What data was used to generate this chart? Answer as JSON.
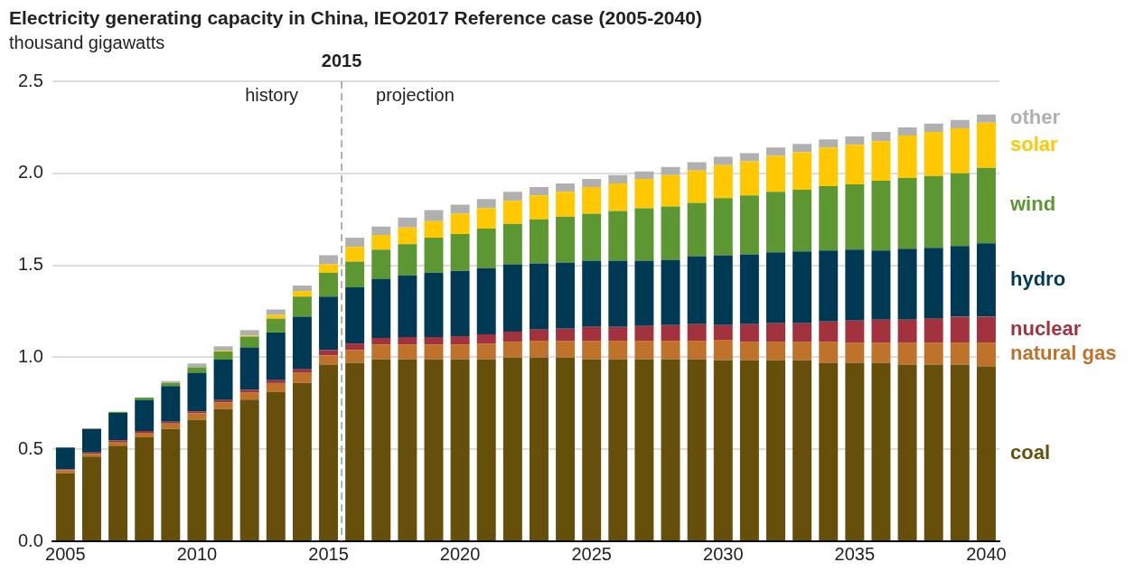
{
  "chart_data": {
    "type": "bar",
    "stacked": true,
    "title": "Electricity generating capacity in China, IEO2017 Reference case (2005-2040)",
    "ylabel": "thousand gigawatts",
    "x": [
      2005,
      2006,
      2007,
      2008,
      2009,
      2010,
      2011,
      2012,
      2013,
      2014,
      2015,
      2016,
      2017,
      2018,
      2019,
      2020,
      2021,
      2022,
      2023,
      2024,
      2025,
      2026,
      2027,
      2028,
      2029,
      2030,
      2031,
      2032,
      2033,
      2034,
      2035,
      2036,
      2037,
      2038,
      2039,
      2040
    ],
    "xlim": [
      2004.5,
      2040.5
    ],
    "xticks": [
      2005,
      2010,
      2015,
      2020,
      2025,
      2030,
      2035,
      2040
    ],
    "ylim": [
      0,
      2.5
    ],
    "yticks": [
      {
        "value": 0,
        "label": "0.0"
      },
      0.5,
      {
        "value": 1,
        "label": "1.0"
      },
      1.5,
      {
        "value": 2,
        "label": "2.0"
      },
      2.5
    ],
    "grid": "y",
    "legend": false,
    "series": [
      {
        "name": "coal",
        "color": "#664f0a",
        "values": [
          0.37,
          0.46,
          0.52,
          0.565,
          0.61,
          0.66,
          0.72,
          0.77,
          0.81,
          0.86,
          0.96,
          0.97,
          0.99,
          0.99,
          0.99,
          0.99,
          0.99,
          1.0,
          1.0,
          1.0,
          0.99,
          0.99,
          0.99,
          0.99,
          0.99,
          0.985,
          0.985,
          0.985,
          0.985,
          0.97,
          0.97,
          0.97,
          0.96,
          0.96,
          0.96,
          0.95
        ]
      },
      {
        "name": "natural gas",
        "color": "#bf7229",
        "values": [
          0.015,
          0.015,
          0.02,
          0.025,
          0.03,
          0.035,
          0.035,
          0.04,
          0.05,
          0.055,
          0.05,
          0.07,
          0.08,
          0.08,
          0.08,
          0.08,
          0.085,
          0.085,
          0.09,
          0.09,
          0.1,
          0.1,
          0.1,
          0.1,
          0.1,
          0.11,
          0.1,
          0.1,
          0.1,
          0.115,
          0.11,
          0.11,
          0.12,
          0.12,
          0.12,
          0.13
        ]
      },
      {
        "name": "nuclear",
        "color": "#a3323f",
        "values": [
          0.007,
          0.007,
          0.009,
          0.009,
          0.009,
          0.011,
          0.012,
          0.013,
          0.015,
          0.02,
          0.03,
          0.035,
          0.035,
          0.04,
          0.04,
          0.045,
          0.05,
          0.055,
          0.06,
          0.065,
          0.075,
          0.075,
          0.08,
          0.085,
          0.09,
          0.08,
          0.095,
          0.1,
          0.1,
          0.11,
          0.12,
          0.125,
          0.125,
          0.13,
          0.14,
          0.14
        ]
      },
      {
        "name": "hydro",
        "color": "#003953",
        "values": [
          0.117,
          0.13,
          0.148,
          0.17,
          0.195,
          0.21,
          0.22,
          0.23,
          0.26,
          0.285,
          0.29,
          0.305,
          0.32,
          0.335,
          0.35,
          0.355,
          0.36,
          0.365,
          0.36,
          0.36,
          0.36,
          0.36,
          0.355,
          0.355,
          0.37,
          0.38,
          0.38,
          0.385,
          0.39,
          0.385,
          0.385,
          0.375,
          0.385,
          0.385,
          0.385,
          0.4
        ]
      },
      {
        "name": "wind",
        "color": "#5d9732",
        "values": [
          0,
          0,
          0.006,
          0.012,
          0.017,
          0.03,
          0.045,
          0.06,
          0.075,
          0.11,
          0.13,
          0.14,
          0.16,
          0.17,
          0.19,
          0.2,
          0.215,
          0.22,
          0.24,
          0.25,
          0.255,
          0.27,
          0.285,
          0.29,
          0.29,
          0.31,
          0.32,
          0.33,
          0.335,
          0.35,
          0.355,
          0.38,
          0.385,
          0.39,
          0.395,
          0.41
        ]
      },
      {
        "name": "solar",
        "color": "#ffc800",
        "values": [
          0,
          0,
          0,
          0,
          0,
          0,
          0.003,
          0.005,
          0.02,
          0.03,
          0.045,
          0.08,
          0.08,
          0.09,
          0.09,
          0.11,
          0.11,
          0.125,
          0.13,
          0.135,
          0.145,
          0.15,
          0.16,
          0.17,
          0.175,
          0.18,
          0.185,
          0.195,
          0.205,
          0.21,
          0.215,
          0.215,
          0.23,
          0.24,
          0.245,
          0.245
        ]
      },
      {
        "name": "other",
        "color": "#b0b0b0",
        "values": [
          0,
          0,
          0,
          0,
          0.01,
          0.02,
          0.025,
          0.03,
          0.03,
          0.03,
          0.05,
          0.05,
          0.045,
          0.055,
          0.06,
          0.05,
          0.05,
          0.05,
          0.045,
          0.045,
          0.045,
          0.045,
          0.04,
          0.045,
          0.045,
          0.045,
          0.045,
          0.045,
          0.045,
          0.045,
          0.045,
          0.05,
          0.045,
          0.045,
          0.045,
          0.045
        ]
      }
    ],
    "ref_lines": [
      {
        "axis": "x",
        "value": 2015.5,
        "label": "2015",
        "line_style": "dashed",
        "color": "#999999"
      }
    ],
    "annotations": [
      "history",
      "projection"
    ]
  }
}
